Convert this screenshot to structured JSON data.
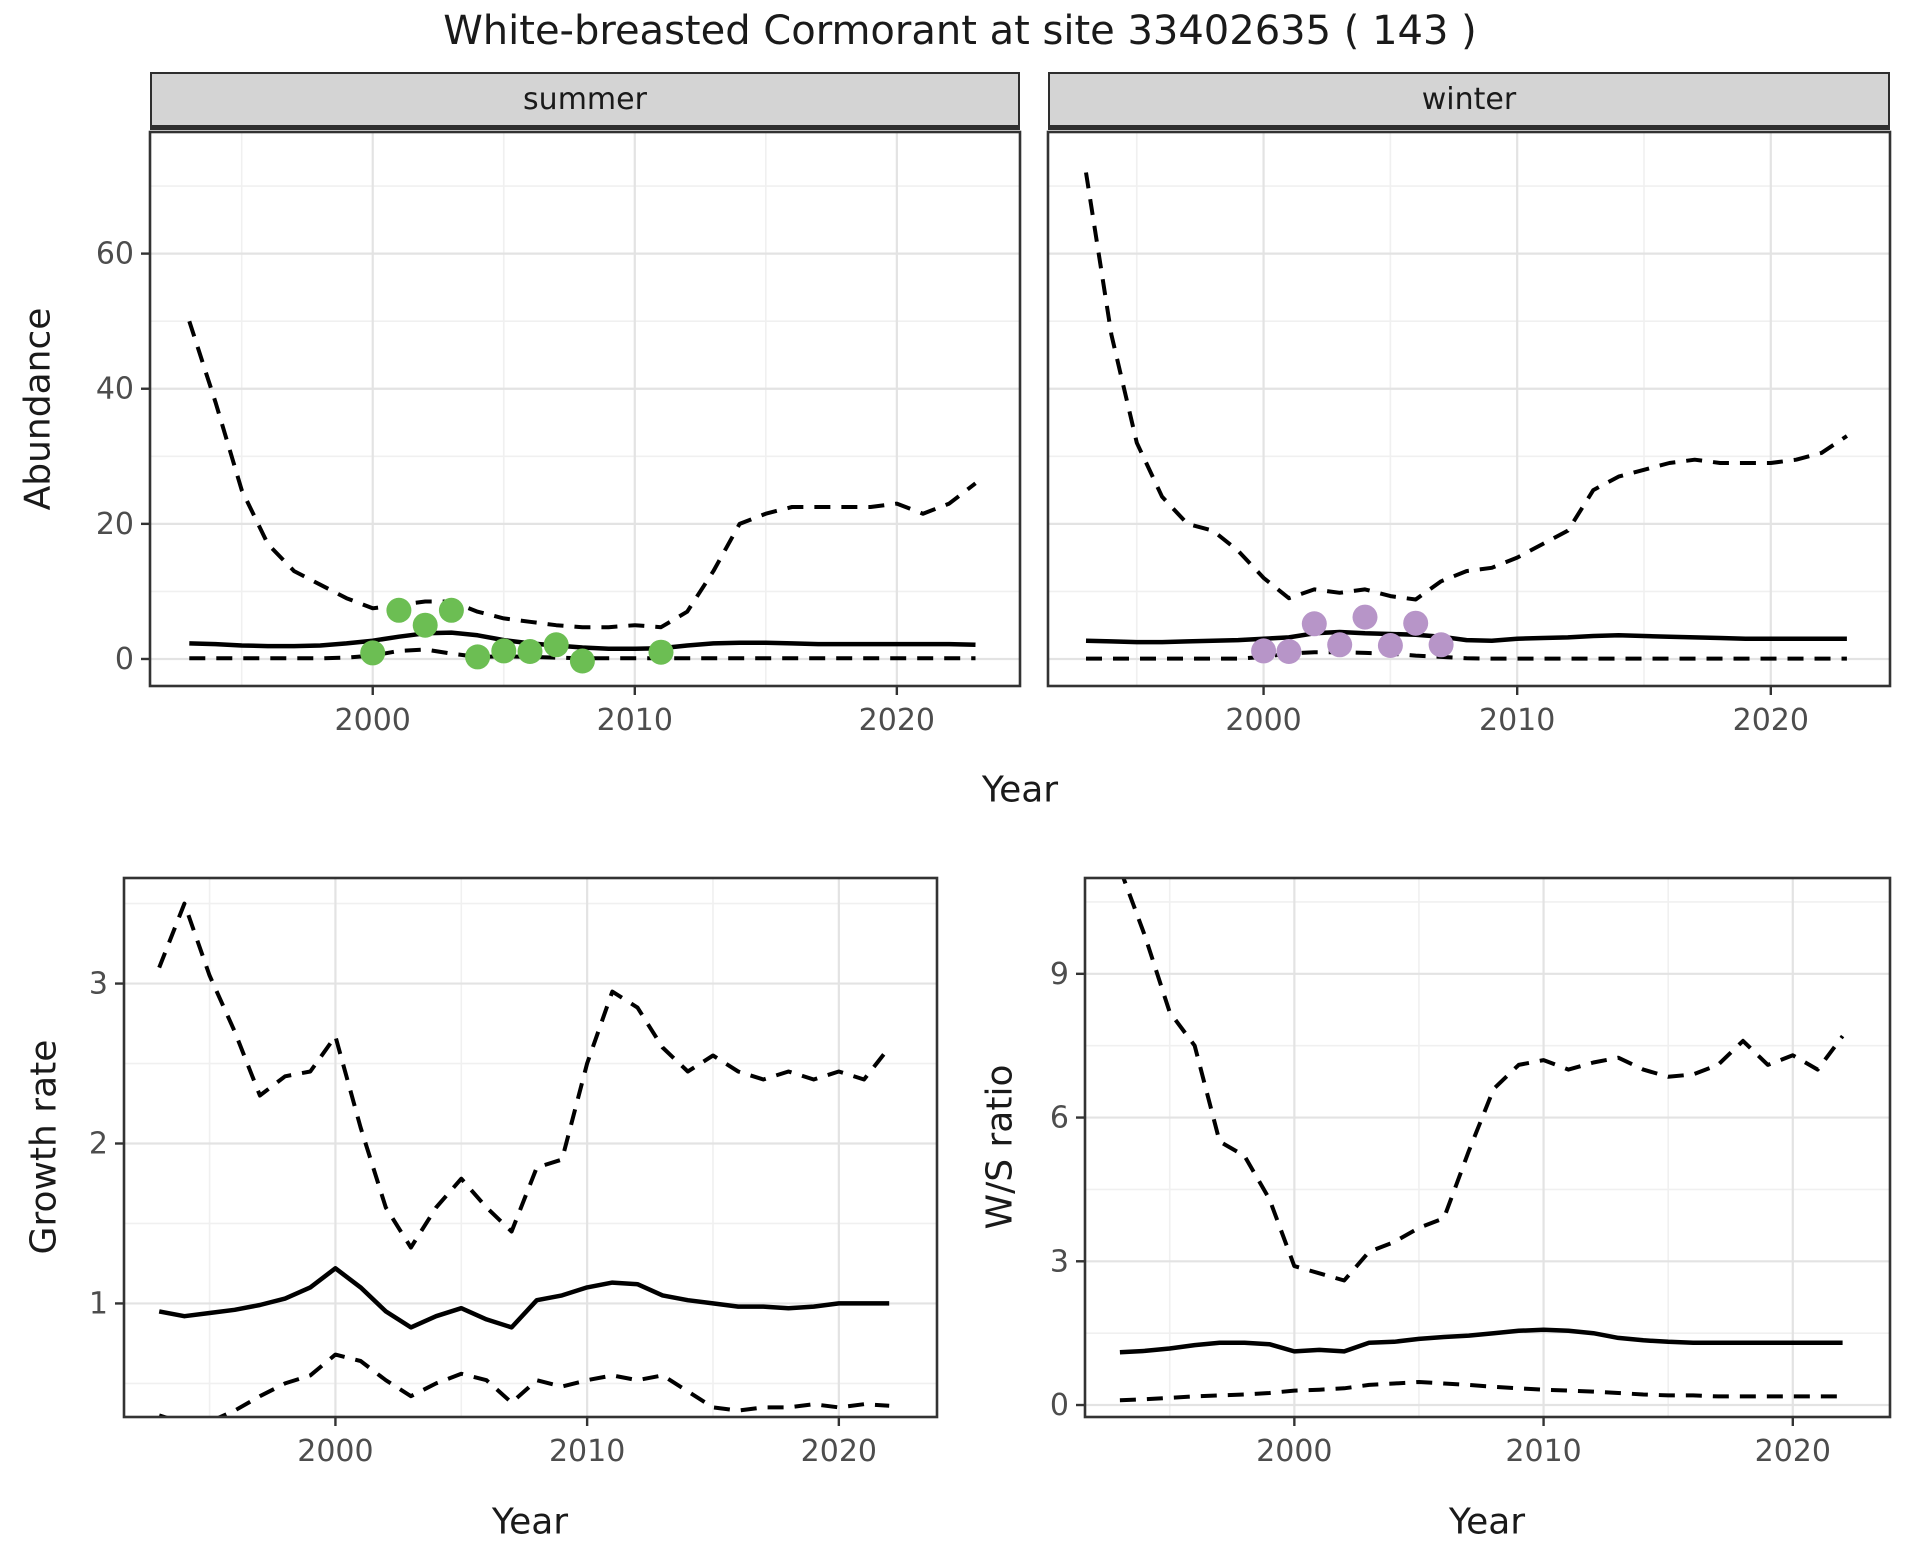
{
  "title": "White-breasted Cormorant at site 33402635 ( 143 )",
  "top_row": {
    "facets": [
      "summer",
      "winter"
    ],
    "xlabel": "Year",
    "ylabel": "Abundance"
  },
  "bottom_row": {
    "left_ylabel": "Growth rate",
    "left_xlabel": "Year",
    "right_ylabel": "W/S ratio",
    "right_xlabel": "Year"
  },
  "colors": {
    "summer_point": "#6cbe53",
    "winter_point": "#b795c8",
    "line": "#000000",
    "strip_fill": "#d4d4d4",
    "grid_major": "#e3e3e3",
    "grid_minor": "#f0f0f0",
    "panel_border": "#333333",
    "tick_text": "#4d4d4d"
  },
  "chart_data": [
    {
      "type": "line",
      "title": "Abundance",
      "xlabel": "Year",
      "ylabel": "Abundance",
      "facets": [
        "summer",
        "winter"
      ],
      "xticks": [
        2000,
        2010,
        2020
      ],
      "yticks": [
        0,
        20,
        40,
        60
      ],
      "xticks_minor": [
        1995,
        2005,
        2015
      ],
      "yticks_minor": [
        10,
        30,
        50,
        70
      ],
      "xlim": [
        1991.5,
        2024.7
      ],
      "ylim": [
        -4,
        78
      ],
      "legend": "off",
      "grid": "on",
      "x": [
        1993,
        1994,
        1995,
        1996,
        1997,
        1998,
        1999,
        2000,
        2001,
        2002,
        2003,
        2004,
        2005,
        2006,
        2007,
        2008,
        2009,
        2010,
        2011,
        2012,
        2013,
        2014,
        2015,
        2016,
        2017,
        2018,
        2019,
        2020,
        2021,
        2022,
        2023
      ],
      "series": [
        {
          "name": "summer-upper-ci",
          "facet": "summer",
          "style": "dashed",
          "values": [
            50,
            38,
            25,
            17,
            13,
            11,
            9,
            7.5,
            8,
            8.5,
            8.5,
            7,
            6,
            5.5,
            5,
            4.7,
            4.7,
            5,
            4.7,
            7,
            13,
            20,
            21.5,
            22.5,
            22.5,
            22.5,
            22.5,
            23,
            21.5,
            23,
            26
          ]
        },
        {
          "name": "summer-median",
          "facet": "summer",
          "style": "solid",
          "values": [
            2.3,
            2.2,
            2.0,
            1.9,
            1.9,
            2.0,
            2.3,
            2.7,
            3.3,
            3.8,
            3.9,
            3.5,
            2.8,
            2.3,
            2.0,
            1.7,
            1.5,
            1.5,
            1.6,
            2.0,
            2.3,
            2.4,
            2.4,
            2.3,
            2.2,
            2.2,
            2.2,
            2.2,
            2.2,
            2.2,
            2.1
          ]
        },
        {
          "name": "summer-lower-ci",
          "facet": "summer",
          "style": "dashed",
          "values": [
            0.1,
            0.1,
            0.1,
            0.1,
            0.1,
            0.1,
            0.2,
            0.5,
            1.2,
            1.4,
            0.8,
            0.3,
            0.4,
            0.3,
            0.2,
            0.1,
            0.1,
            0.1,
            0.1,
            0.1,
            0.1,
            0.1,
            0.1,
            0.1,
            0.1,
            0.1,
            0.1,
            0.1,
            0.1,
            0.1,
            0.1
          ]
        },
        {
          "name": "winter-upper-ci",
          "facet": "winter",
          "style": "dashed",
          "values": [
            72,
            48,
            32,
            24,
            20,
            19,
            16,
            12,
            9,
            10.3,
            9.8,
            10.3,
            9.3,
            8.8,
            11.5,
            13,
            13.5,
            15,
            17,
            19,
            25,
            27,
            28,
            29,
            29.5,
            29,
            29,
            29,
            29.5,
            30.5,
            33
          ]
        },
        {
          "name": "winter-median",
          "facet": "winter",
          "style": "solid",
          "values": [
            2.7,
            2.6,
            2.5,
            2.5,
            2.6,
            2.7,
            2.8,
            3.0,
            3.2,
            3.8,
            4.0,
            3.8,
            3.7,
            3.6,
            3.3,
            2.8,
            2.7,
            3.0,
            3.1,
            3.2,
            3.4,
            3.5,
            3.4,
            3.3,
            3.2,
            3.1,
            3.0,
            3.0,
            3.0,
            3.0,
            3.0
          ]
        },
        {
          "name": "winter-lower-ci",
          "facet": "winter",
          "style": "dashed",
          "values": [
            0.05,
            0.05,
            0.05,
            0.05,
            0.05,
            0.05,
            0.05,
            0.3,
            0.8,
            1.0,
            1.0,
            0.9,
            0.8,
            0.5,
            0.3,
            0.1,
            0.05,
            0.05,
            0.05,
            0.05,
            0.05,
            0.05,
            0.05,
            0.05,
            0.05,
            0.05,
            0.05,
            0.05,
            0.05,
            0.05,
            0.05
          ]
        }
      ],
      "points": [
        {
          "name": "summer-observations",
          "facet": "summer",
          "color": "#6cbe53",
          "xy": [
            [
              2000,
              0.9
            ],
            [
              2001,
              7.2
            ],
            [
              2002,
              5.0
            ],
            [
              2003,
              7.2
            ],
            [
              2004,
              0.3
            ],
            [
              2005,
              1.2
            ],
            [
              2006,
              1.1
            ],
            [
              2007,
              2.1
            ],
            [
              2008,
              -0.3
            ],
            [
              2011,
              1.0
            ]
          ]
        },
        {
          "name": "winter-observations",
          "facet": "winter",
          "color": "#b795c8",
          "xy": [
            [
              2000,
              1.2
            ],
            [
              2001,
              1.1
            ],
            [
              2002,
              5.2
            ],
            [
              2003,
              2.1
            ],
            [
              2004,
              6.2
            ],
            [
              2005,
              2.0
            ],
            [
              2006,
              5.3
            ],
            [
              2007,
              2.1
            ]
          ]
        }
      ]
    },
    {
      "type": "line",
      "title": "Growth rate",
      "xlabel": "Year",
      "ylabel": "Growth rate",
      "xticks": [
        2000,
        2010,
        2020
      ],
      "yticks": [
        1,
        2,
        3
      ],
      "xticks_minor": [
        1995,
        2005,
        2015
      ],
      "yticks_minor": [
        0.5,
        1.5,
        2.5,
        3.5
      ],
      "xlim": [
        1991.6,
        2023.9
      ],
      "ylim": [
        0.29,
        3.66
      ],
      "legend": "off",
      "grid": "on",
      "x": [
        1993,
        1994,
        1995,
        1996,
        1997,
        1998,
        1999,
        2000,
        2001,
        2002,
        2003,
        2004,
        2005,
        2006,
        2007,
        2008,
        2009,
        2010,
        2011,
        2012,
        2013,
        2014,
        2015,
        2016,
        2017,
        2018,
        2019,
        2020,
        2021,
        2022
      ],
      "series": [
        {
          "name": "growth-upper-ci",
          "style": "dashed",
          "values": [
            3.1,
            3.5,
            3.05,
            2.7,
            2.3,
            2.42,
            2.45,
            2.67,
            2.1,
            1.6,
            1.35,
            1.6,
            1.78,
            1.6,
            1.45,
            1.85,
            1.9,
            2.5,
            2.95,
            2.85,
            2.6,
            2.45,
            2.55,
            2.45,
            2.4,
            2.45,
            2.4,
            2.45,
            2.4,
            2.6
          ]
        },
        {
          "name": "growth-median",
          "style": "solid",
          "values": [
            0.95,
            0.92,
            0.94,
            0.96,
            0.99,
            1.03,
            1.1,
            1.22,
            1.1,
            0.95,
            0.85,
            0.92,
            0.97,
            0.9,
            0.85,
            1.02,
            1.05,
            1.1,
            1.13,
            1.12,
            1.05,
            1.02,
            1.0,
            0.98,
            0.98,
            0.97,
            0.98,
            1.0,
            1.0,
            1.0
          ]
        },
        {
          "name": "growth-lower-ci",
          "style": "dashed",
          "values": [
            0.3,
            0.25,
            0.26,
            0.33,
            0.42,
            0.5,
            0.55,
            0.68,
            0.64,
            0.52,
            0.42,
            0.5,
            0.56,
            0.52,
            0.38,
            0.52,
            0.48,
            0.52,
            0.55,
            0.52,
            0.55,
            0.45,
            0.35,
            0.33,
            0.35,
            0.35,
            0.37,
            0.35,
            0.37,
            0.36
          ]
        }
      ],
      "points": []
    },
    {
      "type": "line",
      "title": "W/S ratio",
      "xlabel": "Year",
      "ylabel": "W/S ratio",
      "xticks": [
        2000,
        2010,
        2020
      ],
      "yticks": [
        0,
        3,
        6,
        9
      ],
      "xticks_minor": [
        1995,
        2005,
        2015
      ],
      "yticks_minor": [
        1.5,
        4.5,
        7.5,
        10.5
      ],
      "xlim": [
        1991.6,
        2023.9
      ],
      "ylim": [
        -0.25,
        11.0
      ],
      "legend": "off",
      "grid": "on",
      "x": [
        1993,
        1994,
        1995,
        1996,
        1997,
        1998,
        1999,
        2000,
        2001,
        2002,
        2003,
        2004,
        2005,
        2006,
        2007,
        2008,
        2009,
        2010,
        2011,
        2012,
        2013,
        2014,
        2015,
        2016,
        2017,
        2018,
        2019,
        2020,
        2021,
        2022
      ],
      "series": [
        {
          "name": "ws-upper-ci",
          "style": "dashed",
          "values": [
            11.2,
            9.8,
            8.2,
            7.5,
            5.5,
            5.2,
            4.3,
            2.9,
            2.75,
            2.6,
            3.2,
            3.4,
            3.7,
            3.9,
            5.3,
            6.6,
            7.1,
            7.2,
            7.0,
            7.15,
            7.25,
            7.0,
            6.85,
            6.9,
            7.1,
            7.6,
            7.1,
            7.3,
            7.0,
            7.7
          ]
        },
        {
          "name": "ws-median",
          "style": "solid",
          "values": [
            1.1,
            1.13,
            1.18,
            1.25,
            1.3,
            1.3,
            1.27,
            1.12,
            1.15,
            1.12,
            1.3,
            1.32,
            1.38,
            1.42,
            1.45,
            1.5,
            1.55,
            1.57,
            1.55,
            1.5,
            1.4,
            1.35,
            1.32,
            1.3,
            1.3,
            1.3,
            1.3,
            1.3,
            1.3,
            1.3
          ]
        },
        {
          "name": "ws-lower-ci",
          "style": "dashed",
          "values": [
            0.1,
            0.12,
            0.15,
            0.18,
            0.2,
            0.22,
            0.25,
            0.3,
            0.32,
            0.35,
            0.42,
            0.45,
            0.48,
            0.45,
            0.42,
            0.38,
            0.35,
            0.32,
            0.3,
            0.28,
            0.25,
            0.22,
            0.2,
            0.2,
            0.18,
            0.18,
            0.18,
            0.18,
            0.18,
            0.18
          ]
        }
      ],
      "points": []
    }
  ]
}
